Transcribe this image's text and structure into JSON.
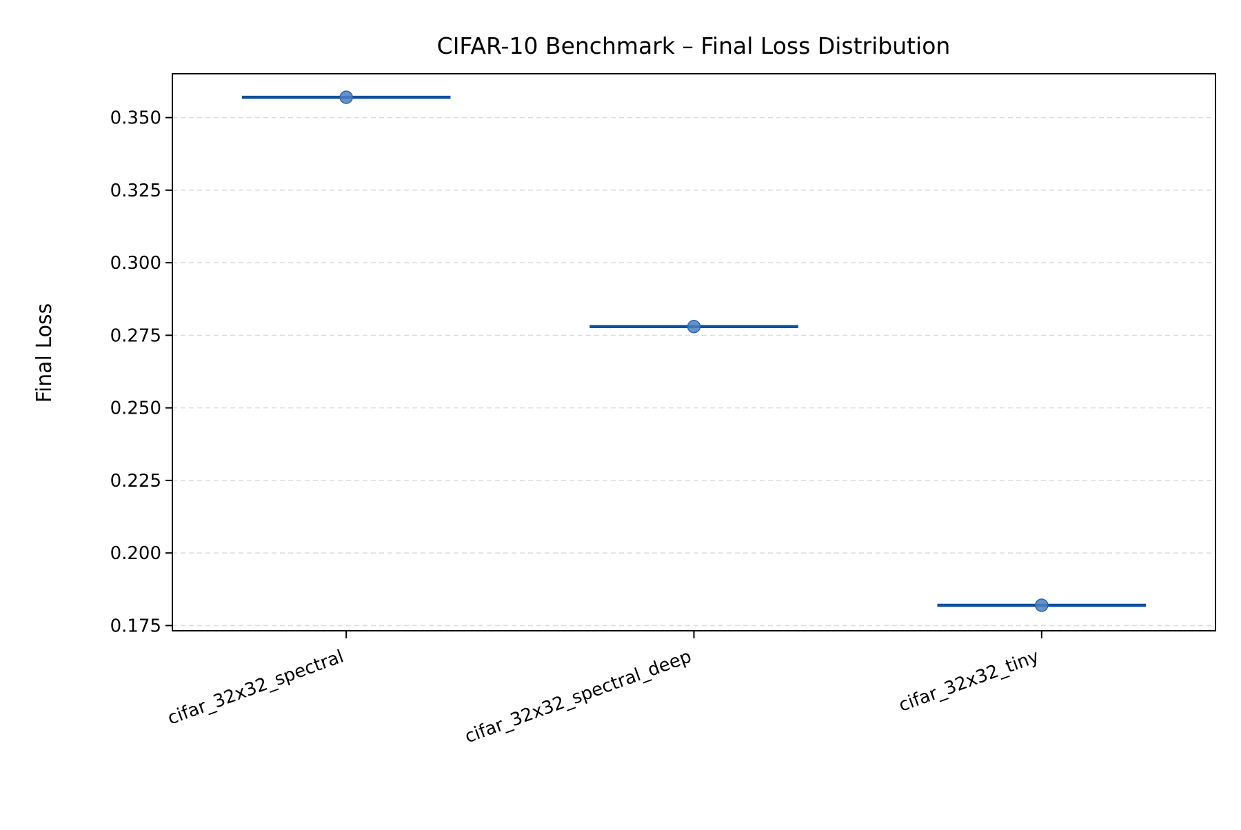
{
  "chart_data": {
    "type": "box",
    "title": "CIFAR-10 Benchmark – Final Loss Distribution",
    "xlabel": "",
    "ylabel": "Final Loss",
    "categories": [
      "cifar_32x32_spectral",
      "cifar_32x32_spectral_deep",
      "cifar_32x32_tiny"
    ],
    "series": [
      {
        "median": [
          0.357,
          0.278,
          0.182
        ],
        "points": [
          0.357,
          0.278,
          0.182
        ]
      }
    ],
    "ylim": [
      0.1732,
      0.3651
    ],
    "yticks": [
      0.175,
      0.2,
      0.225,
      0.25,
      0.275,
      0.3,
      0.325,
      0.35
    ],
    "ytick_labels": [
      "0.175",
      "0.200",
      "0.225",
      "0.250",
      "0.275",
      "0.300",
      "0.325",
      "0.350"
    ],
    "grid": "y-dashed",
    "colors": {
      "median_line": "#0f4f9c",
      "point": "#4a7fc1",
      "point_edge": "#2f64a8",
      "grid": "#dddddd",
      "axes": "#000000"
    }
  }
}
